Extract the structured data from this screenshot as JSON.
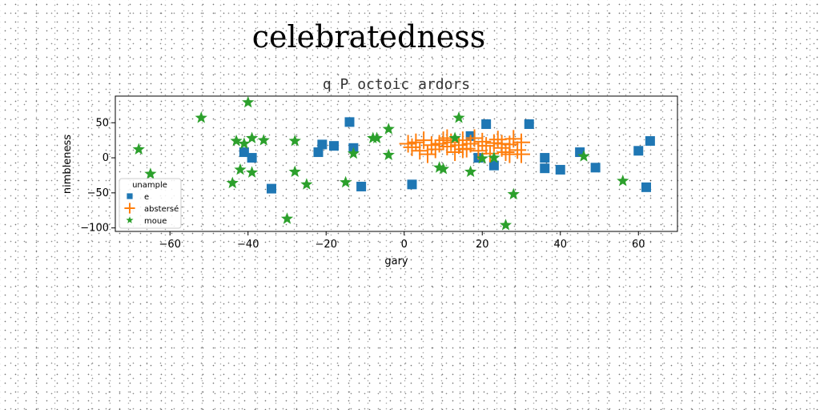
{
  "figure": {
    "suptitle": "celebratedness"
  },
  "chart_data": {
    "type": "scatter",
    "title": "q P octoic ardors",
    "xlabel": "gary",
    "ylabel": "nimbleness",
    "xlim": [
      -74,
      70
    ],
    "ylim": [
      -105,
      88
    ],
    "xticks": [
      -60,
      -40,
      -20,
      0,
      20,
      40,
      60
    ],
    "yticks": [
      50,
      0,
      -50,
      -100
    ],
    "grid": false,
    "legend": {
      "title": "unample",
      "placement": "lower-left"
    },
    "series": [
      {
        "name": "e",
        "marker": "square",
        "color": "#1f77b4",
        "points": [
          [
            -41,
            8
          ],
          [
            -39,
            0
          ],
          [
            -34,
            -44
          ],
          [
            -22,
            8
          ],
          [
            -21,
            19
          ],
          [
            -18,
            17
          ],
          [
            -14,
            51
          ],
          [
            -13,
            14
          ],
          [
            -11,
            -41
          ],
          [
            2,
            -38
          ],
          [
            17,
            31
          ],
          [
            19,
            0
          ],
          [
            21,
            48
          ],
          [
            23,
            -11
          ],
          [
            32,
            48
          ],
          [
            36,
            0
          ],
          [
            36,
            -15
          ],
          [
            40,
            -17
          ],
          [
            45,
            8
          ],
          [
            49,
            -14
          ],
          [
            60,
            10
          ],
          [
            62,
            -42
          ],
          [
            63,
            24
          ]
        ]
      },
      {
        "name": "abstersé",
        "marker": "plus",
        "color": "#ff7f0e",
        "points": [
          [
            1,
            20
          ],
          [
            2,
            15
          ],
          [
            3,
            22
          ],
          [
            4,
            10
          ],
          [
            5,
            25
          ],
          [
            6,
            5
          ],
          [
            7,
            18
          ],
          [
            8,
            12
          ],
          [
            9,
            20
          ],
          [
            10,
            25
          ],
          [
            11,
            16
          ],
          [
            12,
            22
          ],
          [
            13,
            8
          ],
          [
            14,
            18
          ],
          [
            15,
            25
          ],
          [
            16,
            13
          ],
          [
            17,
            20
          ],
          [
            18,
            28
          ],
          [
            19,
            10
          ],
          [
            20,
            23
          ],
          [
            21,
            17
          ],
          [
            22,
            6
          ],
          [
            23,
            21
          ],
          [
            24,
            26
          ],
          [
            25,
            14
          ],
          [
            26,
            8
          ],
          [
            27,
            19
          ],
          [
            28,
            27
          ],
          [
            29,
            11
          ],
          [
            30,
            22
          ],
          [
            25,
            20
          ],
          [
            15,
            12
          ],
          [
            11,
            28
          ],
          [
            27,
            5
          ],
          [
            30,
            5
          ]
        ]
      },
      {
        "name": "moue",
        "marker": "star",
        "color": "#2ca02c",
        "points": [
          [
            -68,
            12
          ],
          [
            -65,
            -23
          ],
          [
            -52,
            57
          ],
          [
            -44,
            -36
          ],
          [
            -43,
            24
          ],
          [
            -42,
            -17
          ],
          [
            -41,
            20
          ],
          [
            -40,
            79
          ],
          [
            -39,
            28
          ],
          [
            -39,
            -21
          ],
          [
            -36,
            25
          ],
          [
            -30,
            -87
          ],
          [
            -28,
            -20
          ],
          [
            -28,
            24
          ],
          [
            -25,
            -38
          ],
          [
            -15,
            -35
          ],
          [
            -13,
            6
          ],
          [
            -8,
            28
          ],
          [
            -7,
            28
          ],
          [
            -4,
            41
          ],
          [
            -4,
            4
          ],
          [
            9,
            -14
          ],
          [
            10,
            -16
          ],
          [
            13,
            28
          ],
          [
            14,
            57
          ],
          [
            17,
            -20
          ],
          [
            20,
            -1
          ],
          [
            23,
            0
          ],
          [
            26,
            -96
          ],
          [
            28,
            -52
          ],
          [
            46,
            2
          ],
          [
            56,
            -33
          ]
        ]
      }
    ]
  }
}
